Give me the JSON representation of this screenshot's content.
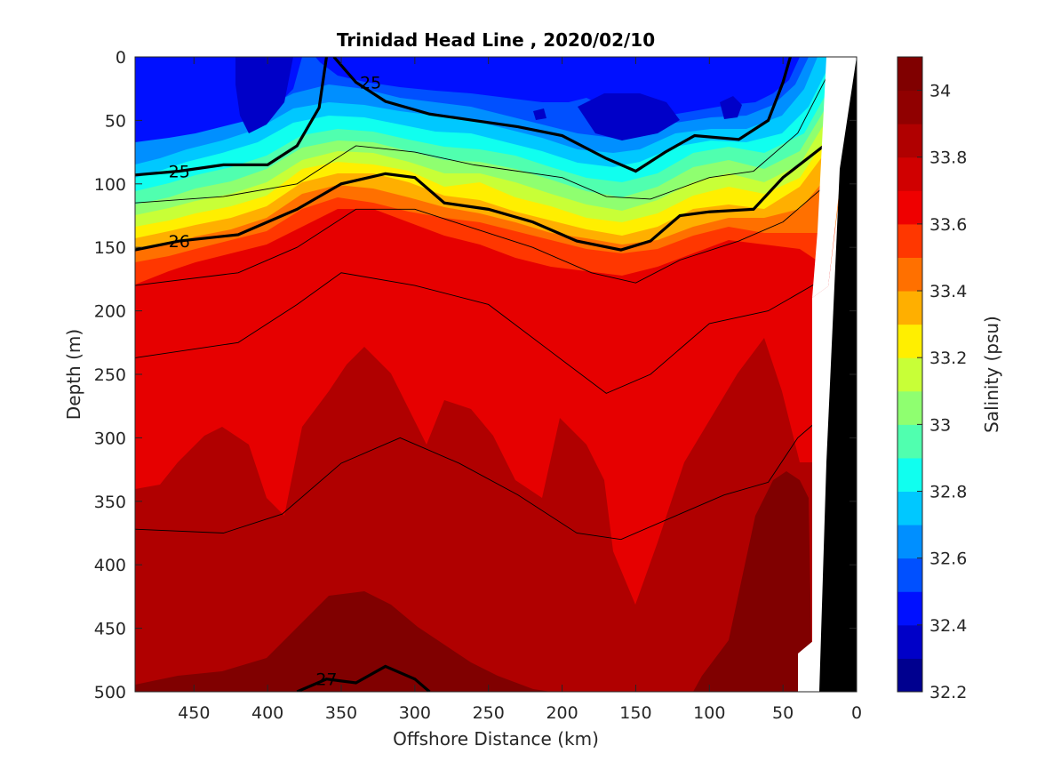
{
  "chart_data": {
    "type": "heatmap",
    "title": "Trinidad Head Line , 2020/02/10",
    "xlabel": "Offshore Distance (km)",
    "ylabel": "Depth (m)",
    "colorbar_label": "Salinity (psu)",
    "x_axis_reversed": true,
    "y_axis_reversed": true,
    "xlim": [
      490,
      0
    ],
    "ylim": [
      0,
      500
    ],
    "x_ticks": [
      450,
      400,
      350,
      300,
      250,
      200,
      150,
      100,
      50,
      0
    ],
    "y_ticks": [
      0,
      50,
      100,
      150,
      200,
      250,
      300,
      350,
      400,
      450,
      500
    ],
    "colorbar_range": [
      32.2,
      34.1
    ],
    "colorbar_ticks": [
      32.2,
      32.4,
      32.6,
      32.8,
      33,
      33.2,
      33.4,
      33.6,
      33.8,
      34
    ],
    "colorbar_tick_labels": [
      "32.2",
      "32.4",
      "32.6",
      "32.8",
      "33",
      "33.2",
      "33.4",
      "33.6",
      "33.8",
      "34"
    ],
    "colorbar_levels": [
      32.2,
      32.3,
      32.4,
      32.5,
      32.6,
      32.7,
      32.8,
      32.9,
      33.0,
      33.1,
      33.2,
      33.3,
      33.4,
      33.5,
      33.6,
      33.7,
      33.8,
      33.9,
      34.0
    ],
    "colorbar_colors": [
      "#00008f",
      "#0000c8",
      "#0010ff",
      "#0050ff",
      "#008fff",
      "#00c8ff",
      "#10ffef",
      "#50ffaf",
      "#8fff70",
      "#c8ff37",
      "#ffef00",
      "#ffaf00",
      "#ff7000",
      "#ff3700",
      "#ef0000",
      "#d00000",
      "#b00000",
      "#900000",
      "#800000"
    ],
    "salinity_layers": [
      {
        "level": "33.9",
        "color": "#e60000",
        "boundary_depth": [
          [
            490,
            190
          ],
          [
            460,
            185
          ],
          [
            420,
            165
          ],
          [
            380,
            150
          ],
          [
            340,
            140
          ],
          [
            300,
            138
          ],
          [
            260,
            150
          ],
          [
            220,
            160
          ],
          [
            180,
            170
          ],
          [
            150,
            175
          ],
          [
            110,
            165
          ],
          [
            70,
            160
          ],
          [
            40,
            150
          ],
          [
            20,
            140
          ]
        ]
      },
      {
        "level": "34.0",
        "color": "#b00000",
        "region": "deep water mass below undulating interface ~260-340 m with tongues rising near 340 km and 270 km"
      },
      {
        "level": "34.1",
        "color": "#800000",
        "region": "patches near bottom at 310-340 km and inshore 40-80 km"
      }
    ],
    "near_surface_fresh_layer": "salinity 32.4-32.7 psu in upper 80 m, freshest (< 32.5) near 380-410 km and 120-160 km",
    "density_contours": [
      {
        "label": "25",
        "style": "bold",
        "points": [
          [
            490,
            93
          ],
          [
            460,
            90
          ],
          [
            430,
            85
          ],
          [
            400,
            85
          ],
          [
            380,
            70
          ],
          [
            365,
            40
          ],
          [
            360,
            0
          ]
        ],
        "label_x": 460
      },
      {
        "label": "25",
        "style": "bold",
        "points": [
          [
            355,
            0
          ],
          [
            340,
            20
          ],
          [
            320,
            35
          ],
          [
            290,
            45
          ],
          [
            260,
            50
          ],
          [
            230,
            55
          ],
          [
            200,
            62
          ],
          [
            170,
            80
          ],
          [
            150,
            90
          ],
          [
            130,
            75
          ],
          [
            110,
            62
          ],
          [
            80,
            65
          ],
          [
            60,
            50
          ],
          [
            50,
            20
          ],
          [
            45,
            0
          ]
        ],
        "label_x": 330
      },
      {
        "label": "26",
        "style": "bold",
        "points": [
          [
            490,
            152
          ],
          [
            460,
            145
          ],
          [
            420,
            140
          ],
          [
            380,
            120
          ],
          [
            350,
            100
          ],
          [
            320,
            92
          ],
          [
            300,
            95
          ],
          [
            280,
            115
          ],
          [
            250,
            120
          ],
          [
            220,
            130
          ],
          [
            190,
            145
          ],
          [
            160,
            152
          ],
          [
            140,
            145
          ],
          [
            120,
            125
          ],
          [
            100,
            122
          ],
          [
            70,
            120
          ],
          [
            50,
            95
          ],
          [
            20,
            68
          ]
        ],
        "label_x": 460
      },
      {
        "label": "27",
        "style": "bold",
        "points": [
          [
            380,
            500
          ],
          [
            360,
            490
          ],
          [
            340,
            493
          ],
          [
            320,
            480
          ],
          [
            300,
            490
          ],
          [
            290,
            500
          ]
        ],
        "label_x": 360
      }
    ],
    "thin_contours_depth": [
      {
        "level": "25.5",
        "points": [
          [
            490,
            115
          ],
          [
            430,
            110
          ],
          [
            380,
            100
          ],
          [
            340,
            70
          ],
          [
            300,
            75
          ],
          [
            260,
            85
          ],
          [
            200,
            95
          ],
          [
            170,
            110
          ],
          [
            140,
            112
          ],
          [
            100,
            95
          ],
          [
            70,
            90
          ],
          [
            40,
            60
          ],
          [
            20,
            15
          ]
        ]
      },
      {
        "level": "26.2",
        "points": [
          [
            490,
            180
          ],
          [
            420,
            170
          ],
          [
            380,
            150
          ],
          [
            340,
            120
          ],
          [
            300,
            120
          ],
          [
            260,
            135
          ],
          [
            220,
            150
          ],
          [
            180,
            170
          ],
          [
            150,
            178
          ],
          [
            120,
            160
          ],
          [
            80,
            145
          ],
          [
            50,
            130
          ],
          [
            20,
            100
          ]
        ]
      },
      {
        "level": "26.5",
        "points": [
          [
            490,
            237
          ],
          [
            420,
            225
          ],
          [
            380,
            195
          ],
          [
            350,
            170
          ],
          [
            300,
            180
          ],
          [
            250,
            195
          ],
          [
            210,
            230
          ],
          [
            170,
            265
          ],
          [
            140,
            250
          ],
          [
            100,
            210
          ],
          [
            60,
            200
          ],
          [
            30,
            180
          ],
          [
            20,
            170
          ]
        ]
      },
      {
        "level": "26.8",
        "points": [
          [
            490,
            372
          ],
          [
            430,
            375
          ],
          [
            390,
            360
          ],
          [
            350,
            320
          ],
          [
            310,
            300
          ],
          [
            270,
            320
          ],
          [
            230,
            345
          ],
          [
            190,
            375
          ],
          [
            160,
            380
          ],
          [
            120,
            360
          ],
          [
            90,
            345
          ],
          [
            60,
            335
          ],
          [
            40,
            300
          ],
          [
            30,
            290
          ]
        ]
      }
    ],
    "bottom_topography": "black coastal slope from 0 km at surface widening to ~25 km at 500 m; white gap marks missing data at 25-35 km below 190 m"
  }
}
